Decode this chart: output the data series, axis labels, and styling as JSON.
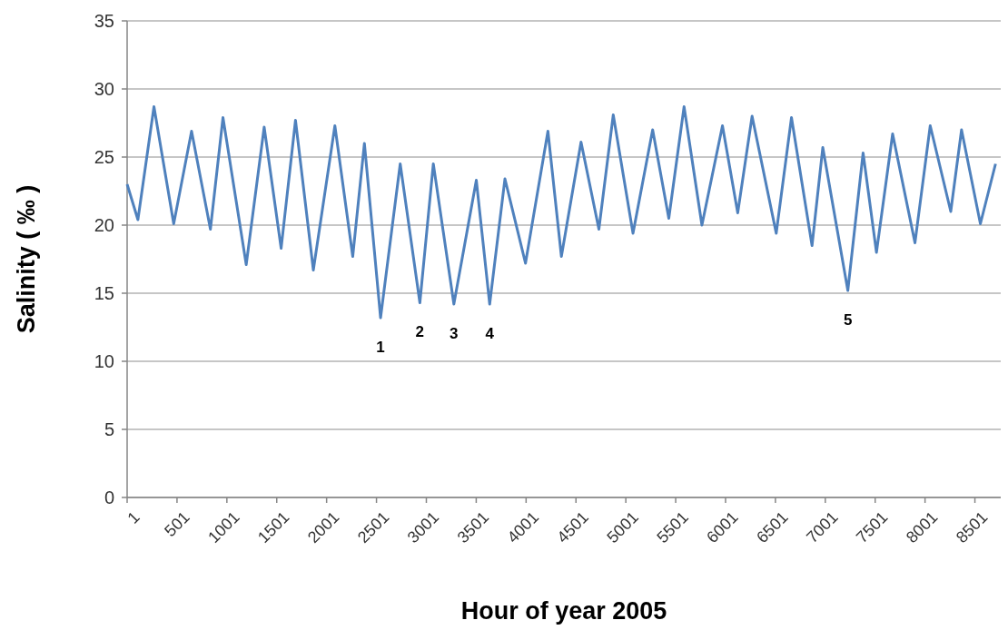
{
  "chart_data": {
    "type": "line",
    "xlabel": "Hour of year 2005",
    "ylabel": "Salinity ( ‰ )",
    "x": [
      1,
      109,
      270,
      468,
      647,
      836,
      962,
      1195,
      1375,
      1545,
      1689,
      1868,
      2084,
      2263,
      2380,
      2542,
      2739,
      2936,
      3071,
      3277,
      3502,
      3636,
      3789,
      3995,
      4220,
      4355,
      4552,
      4731,
      4875,
      5073,
      5270,
      5432,
      5585,
      5764,
      5970,
      6123,
      6267,
      6509,
      6662,
      6868,
      6976,
      7227,
      7380,
      7514,
      7676,
      7900,
      8053,
      8259,
      8367,
      8556,
      8708
    ],
    "series": [
      {
        "color": "#4f81bd",
        "values": [
          23,
          20.4,
          28.7,
          20.1,
          26.9,
          19.7,
          27.9,
          17.1,
          27.2,
          18.3,
          27.7,
          16.7,
          27.3,
          17.7,
          26,
          13.2,
          24.5,
          14.3,
          24.5,
          14.2,
          23.3,
          14.2,
          23.4,
          17.2,
          26.9,
          17.7,
          26.1,
          19.7,
          28.1,
          19.4,
          27,
          20.5,
          28.7,
          20,
          27.3,
          20.9,
          28,
          19.4,
          27.9,
          18.5,
          25.7,
          15.2,
          25.3,
          18,
          26.7,
          18.7,
          27.3,
          21,
          27,
          20.1,
          24.5
        ]
      }
    ],
    "xlim": [
      1,
      8760
    ],
    "xticks": [
      1,
      501,
      1001,
      1501,
      2001,
      2501,
      3001,
      3501,
      4001,
      4501,
      5001,
      5501,
      6001,
      6501,
      7001,
      7501,
      8001,
      8501
    ],
    "ylim": [
      0,
      35
    ],
    "yticks": [
      0,
      5,
      10,
      15,
      20,
      25,
      30,
      35
    ],
    "grid": "y",
    "marker": "none",
    "line_style": "solid",
    "annotations": [
      {
        "text": "1",
        "x": 2542,
        "y": 13.2
      },
      {
        "text": "2",
        "x": 2936,
        "y": 14.3
      },
      {
        "text": "3",
        "x": 3277,
        "y": 14.2
      },
      {
        "text": "4",
        "x": 3636,
        "y": 14.2
      },
      {
        "text": "5",
        "x": 7227,
        "y": 15.2
      }
    ]
  }
}
